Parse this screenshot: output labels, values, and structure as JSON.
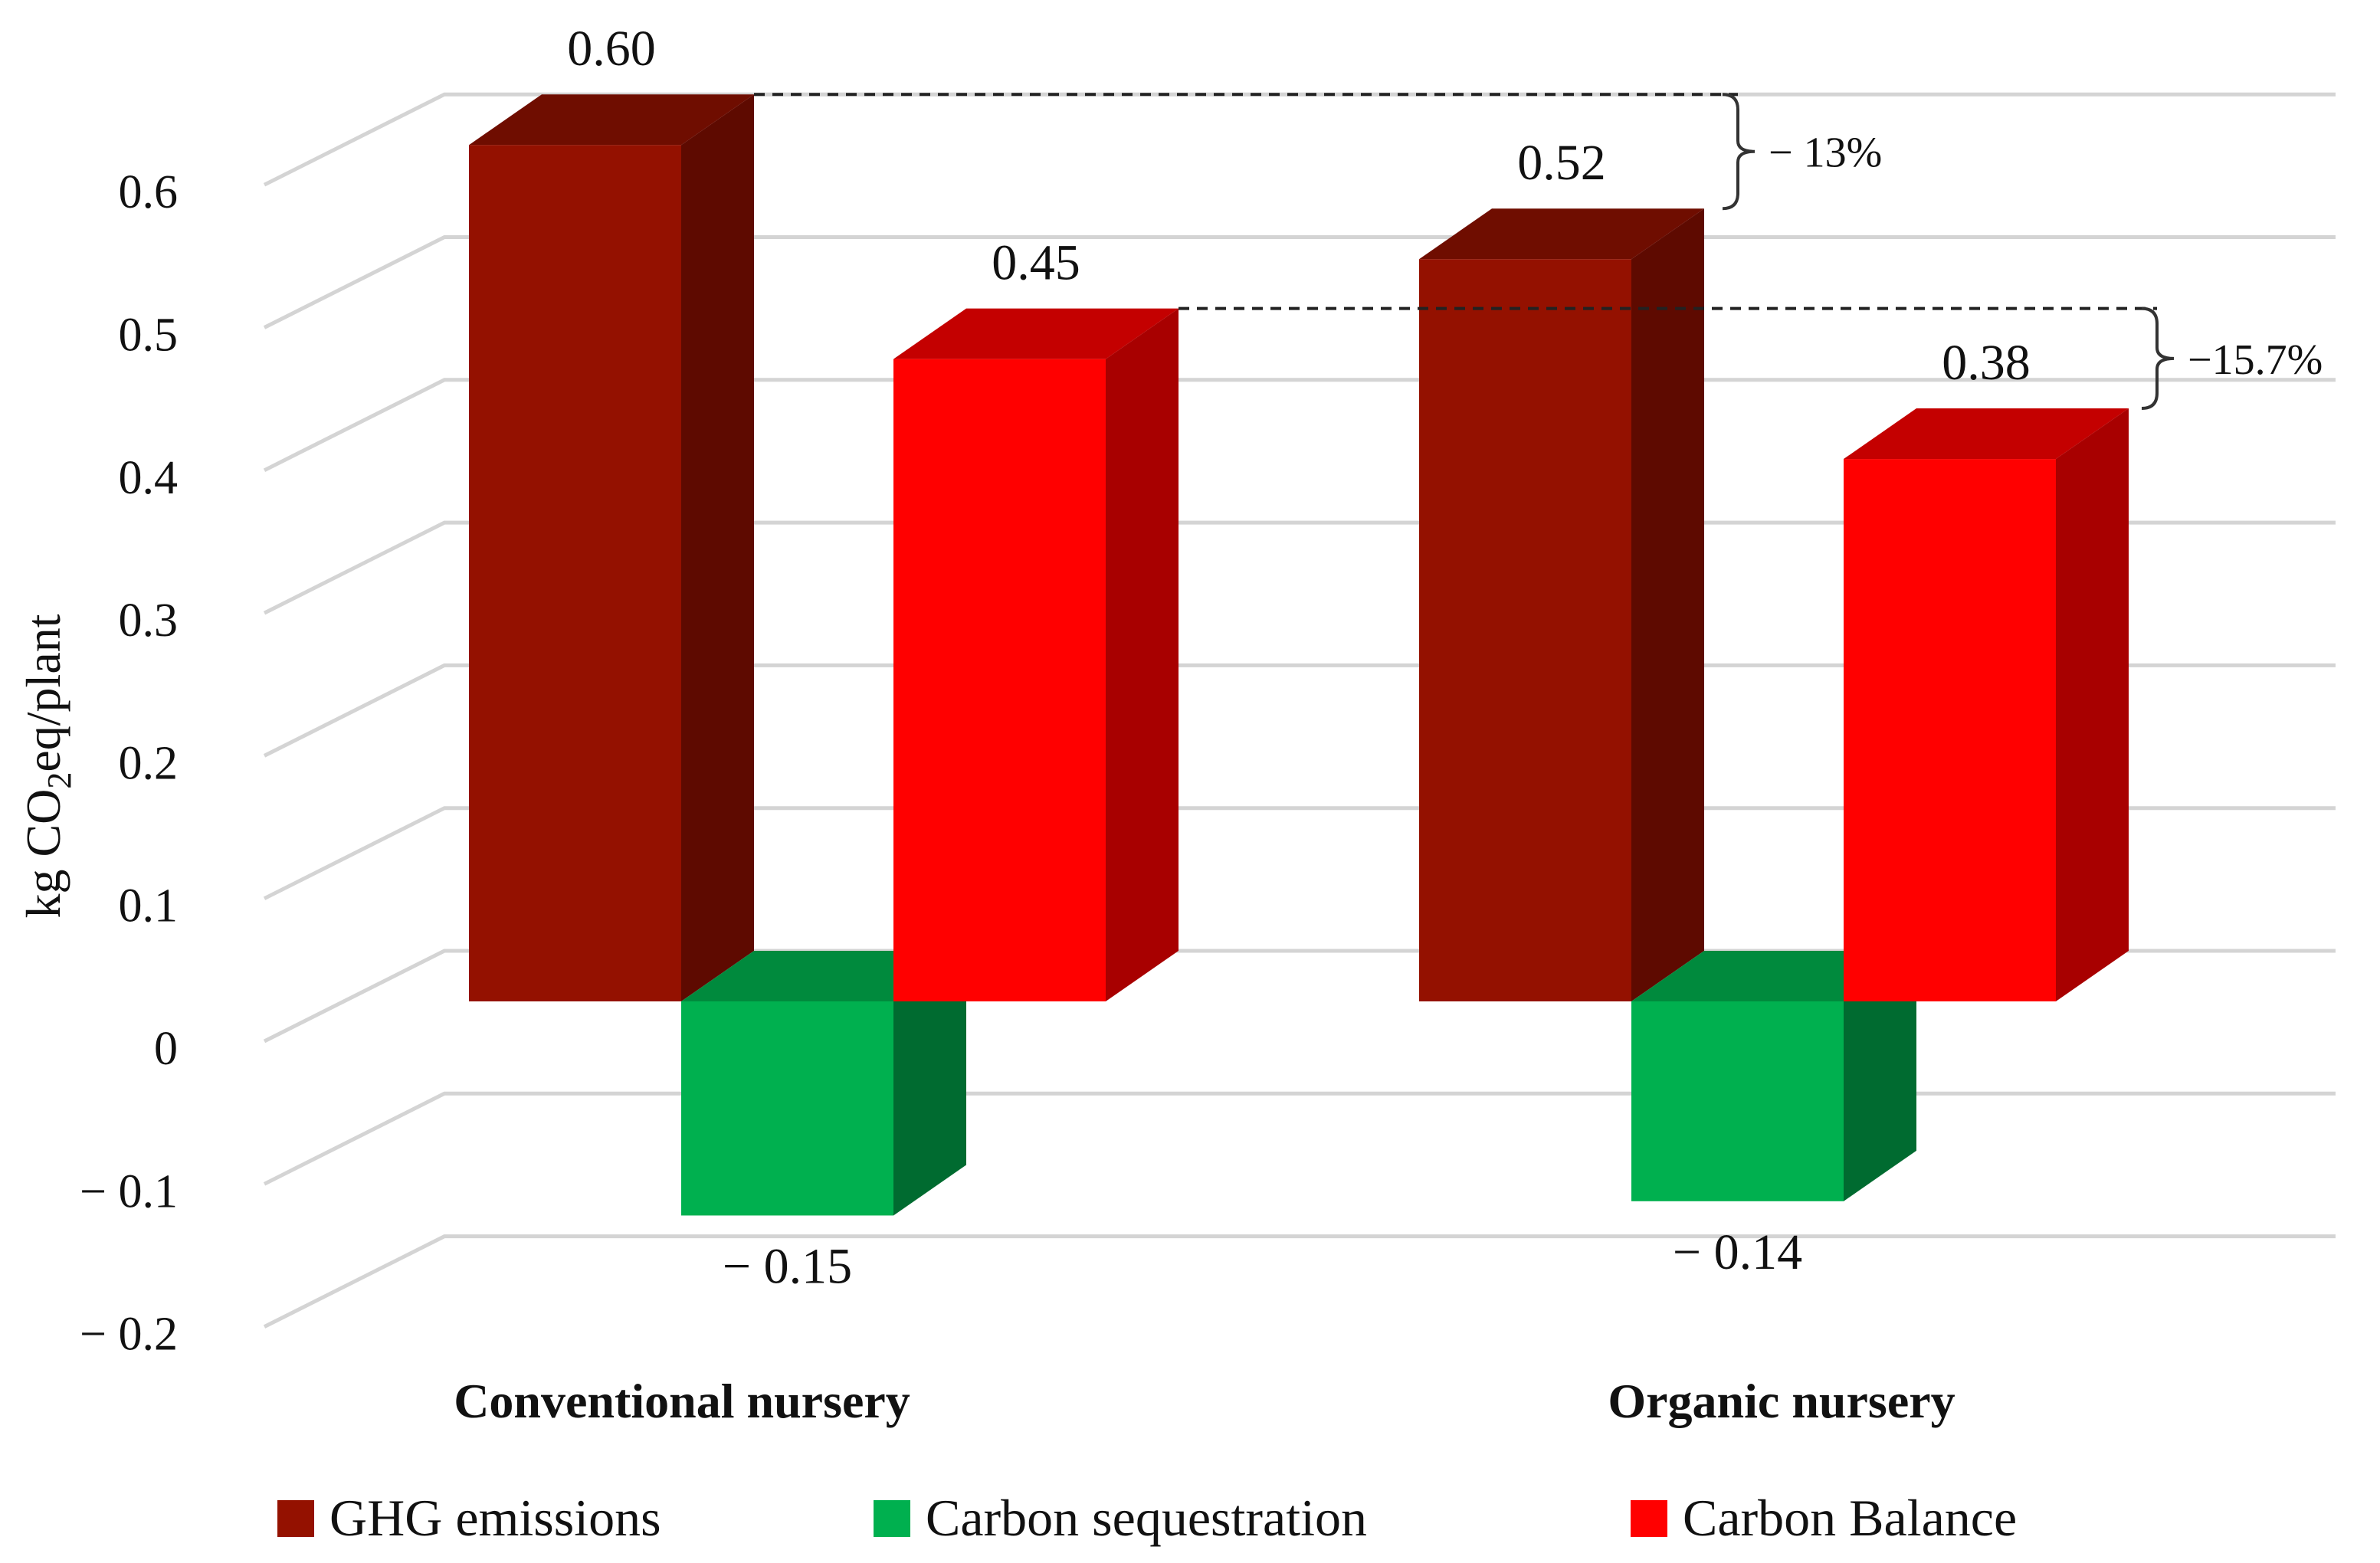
{
  "chart_data": {
    "type": "bar",
    "style": "3d-clustered",
    "title": "",
    "ylabel": {
      "prefix": "kg CO",
      "subscript": "2",
      "suffix": "eq/plant"
    },
    "ylim": [
      -0.2,
      0.6
    ],
    "yticks": [
      {
        "value": 0.6,
        "label": "0.6"
      },
      {
        "value": 0.5,
        "label": "0.5"
      },
      {
        "value": 0.4,
        "label": "0.4"
      },
      {
        "value": 0.3,
        "label": "0.3"
      },
      {
        "value": 0.2,
        "label": "0.2"
      },
      {
        "value": 0.1,
        "label": "0.1"
      },
      {
        "value": 0,
        "label": "0"
      },
      {
        "value": -0.1,
        "label": "− 0.1"
      },
      {
        "value": -0.2,
        "label": "− 0.2"
      }
    ],
    "grid": true,
    "categories": [
      "Conventional nursery",
      "Organic nursery"
    ],
    "series": [
      {
        "name": "GHG emissions",
        "color": "#941100",
        "side_color": "#5e0a00",
        "top_color": "#6f0d00",
        "values": [
          0.6,
          0.52
        ],
        "labels": [
          "0.60",
          "0.52"
        ]
      },
      {
        "name": "Carbon sequestration",
        "color": "#00b04f",
        "side_color": "#006b30",
        "top_color": "#008a3d",
        "values": [
          -0.15,
          -0.14
        ],
        "labels": [
          "− 0.15",
          "− 0.14"
        ]
      },
      {
        "name": "Carbon Balance",
        "color": "#ff0000",
        "side_color": "#a80000",
        "top_color": "#c40000",
        "values": [
          0.45,
          0.38
        ],
        "labels": [
          "0.45",
          "0.38"
        ]
      }
    ],
    "annotations": [
      {
        "series": "GHG emissions",
        "from": 0.6,
        "to": 0.52,
        "label": "− 13%"
      },
      {
        "series": "Carbon Balance",
        "from": 0.45,
        "to": 0.38,
        "label": "−15.7%"
      }
    ],
    "legend": {
      "position": "bottom"
    }
  }
}
